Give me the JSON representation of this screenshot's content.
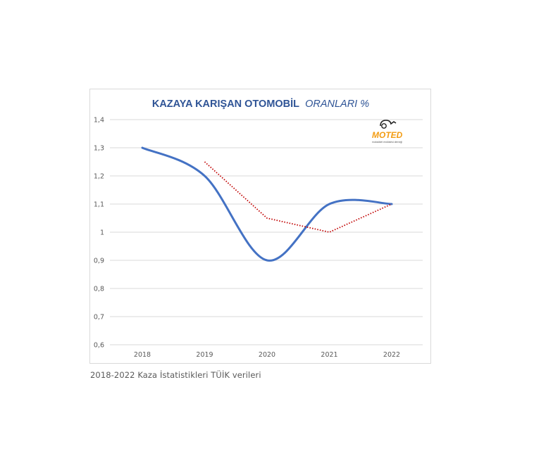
{
  "chart_data": {
    "type": "line",
    "title_main": "KAZAYA KARIŞAN OTOMOBİL",
    "title_suffix": "ORANLARI %",
    "categories": [
      "2018",
      "2019",
      "2020",
      "2021",
      "2022"
    ],
    "ylim": [
      0.6,
      1.4
    ],
    "yticks": [
      "0,6",
      "0,7",
      "0,8",
      "0,9",
      "1",
      "1,1",
      "1,2",
      "1,3",
      "1,4"
    ],
    "grid": true,
    "series": [
      {
        "values": [
          1.3,
          1.2,
          0.9,
          1.1,
          1.1
        ],
        "color": "#4472c4",
        "style": "solid-smooth"
      },
      {
        "values": [
          null,
          1.25,
          1.05,
          1.0,
          1.1
        ],
        "color": "#c00000",
        "style": "dotted"
      }
    ],
    "logo": {
      "text": "MOTED",
      "subtext": "motosiklet endüstrisi derneği",
      "color": "#f39c12"
    }
  },
  "caption": "2018-2022 Kaza İstatistikleri TÜİK verileri",
  "colors": {
    "title": "#2f5496",
    "grid": "#d9d9d9",
    "axis_text": "#595959"
  }
}
